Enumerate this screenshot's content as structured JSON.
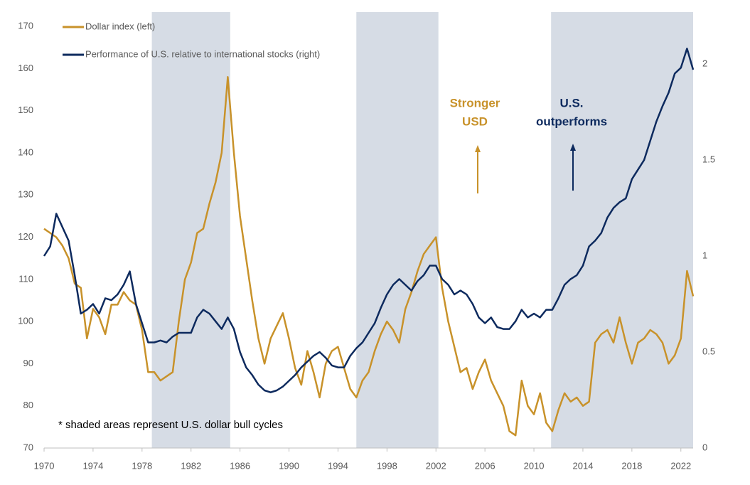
{
  "chart_data": {
    "type": "line",
    "x": [
      1970,
      1970.5,
      1971,
      1971.5,
      1972,
      1972.5,
      1973,
      1973.5,
      1974,
      1974.5,
      1975,
      1975.5,
      1976,
      1976.5,
      1977,
      1977.5,
      1978,
      1978.5,
      1979,
      1979.5,
      1980,
      1980.5,
      1981,
      1981.5,
      1982,
      1982.5,
      1983,
      1983.5,
      1984,
      1984.5,
      1985,
      1985.5,
      1986,
      1986.5,
      1987,
      1987.5,
      1988,
      1988.5,
      1989,
      1989.5,
      1990,
      1990.5,
      1991,
      1991.5,
      1992,
      1992.5,
      1993,
      1993.5,
      1994,
      1994.5,
      1995,
      1995.5,
      1996,
      1996.5,
      1997,
      1997.5,
      1998,
      1998.5,
      1999,
      1999.5,
      2000,
      2000.5,
      2001,
      2001.5,
      2002,
      2002.5,
      2003,
      2003.5,
      2004,
      2004.5,
      2005,
      2005.5,
      2006,
      2006.5,
      2007,
      2007.5,
      2008,
      2008.5,
      2009,
      2009.5,
      2010,
      2010.5,
      2011,
      2011.5,
      2012,
      2012.5,
      2013,
      2013.5,
      2014,
      2014.5,
      2015,
      2015.5,
      2016,
      2016.5,
      2017,
      2017.5,
      2018,
      2018.5,
      2019,
      2019.5,
      2020,
      2020.5,
      2021,
      2021.5,
      2022,
      2022.5,
      2023
    ],
    "series": [
      {
        "name": "Dollar index (left)",
        "color": "#c8922a",
        "values": [
          122,
          121,
          120,
          118,
          115,
          109,
          108,
          96,
          103,
          101,
          97,
          104,
          104,
          107,
          105,
          104,
          98,
          88,
          88,
          86,
          87,
          88,
          100,
          110,
          114,
          121,
          122,
          128,
          133,
          140,
          158,
          140,
          125,
          115,
          105,
          96,
          90,
          96,
          99,
          102,
          96,
          89,
          85,
          93,
          88,
          82,
          90,
          93,
          94,
          89,
          84,
          82,
          86,
          88,
          93,
          97,
          100,
          98,
          95,
          103,
          107,
          112,
          116,
          118,
          120,
          108,
          100,
          94,
          88,
          89,
          84,
          88,
          91,
          86,
          83,
          80,
          74,
          73,
          86,
          80,
          78,
          83,
          76,
          74,
          79,
          83,
          81,
          82,
          80,
          81,
          95,
          97,
          98,
          95,
          101,
          95,
          90,
          95,
          96,
          98,
          97,
          95,
          90,
          92,
          96,
          112,
          106
        ]
      },
      {
        "name": "Performance of U.S. relative to international stocks (right)",
        "color": "#0d2a5e",
        "axis": "y2",
        "values": [
          1.0,
          1.05,
          1.22,
          1.15,
          1.08,
          0.9,
          0.7,
          0.72,
          0.75,
          0.7,
          0.78,
          0.77,
          0.8,
          0.85,
          0.92,
          0.75,
          0.65,
          0.55,
          0.55,
          0.56,
          0.55,
          0.58,
          0.6,
          0.6,
          0.6,
          0.68,
          0.72,
          0.7,
          0.66,
          0.62,
          0.68,
          0.62,
          0.5,
          0.42,
          0.38,
          0.33,
          0.3,
          0.29,
          0.3,
          0.32,
          0.35,
          0.38,
          0.42,
          0.45,
          0.48,
          0.5,
          0.47,
          0.43,
          0.42,
          0.42,
          0.48,
          0.52,
          0.55,
          0.6,
          0.65,
          0.73,
          0.8,
          0.85,
          0.88,
          0.85,
          0.82,
          0.87,
          0.9,
          0.95,
          0.95,
          0.88,
          0.85,
          0.8,
          0.82,
          0.8,
          0.75,
          0.68,
          0.65,
          0.68,
          0.63,
          0.62,
          0.62,
          0.66,
          0.72,
          0.68,
          0.7,
          0.68,
          0.72,
          0.72,
          0.78,
          0.85,
          0.88,
          0.9,
          0.95,
          1.05,
          1.08,
          1.12,
          1.2,
          1.25,
          1.28,
          1.3,
          1.4,
          1.45,
          1.5,
          1.6,
          1.7,
          1.78,
          1.85,
          1.95,
          1.98,
          2.08,
          1.97
        ]
      }
    ],
    "xlim": [
      1970,
      2023
    ],
    "xticks": [
      1970,
      1974,
      1978,
      1982,
      1986,
      1990,
      1994,
      1998,
      2002,
      2006,
      2010,
      2014,
      2018,
      2022
    ],
    "ylim": [
      70,
      173.4
    ],
    "yticks": [
      70,
      80,
      90,
      100,
      110,
      120,
      130,
      140,
      150,
      160,
      170
    ],
    "y2lim": [
      0,
      2.27
    ],
    "y2ticks": [
      0,
      0.5,
      1,
      1.5,
      2
    ],
    "shaded_periods": [
      [
        1978.8,
        1985.2
      ],
      [
        1995.5,
        2002.2
      ],
      [
        2011.4,
        2023
      ]
    ],
    "shade_color": "#d6dce5",
    "annotations": [
      {
        "lines": [
          "Stronger",
          "USD"
        ],
        "color": "#c8922a"
      },
      {
        "lines": [
          "U.S.",
          "outperforms"
        ],
        "color": "#0d2a5e"
      }
    ],
    "footnote": "* shaded areas represent U.S. dollar bull cycles"
  }
}
